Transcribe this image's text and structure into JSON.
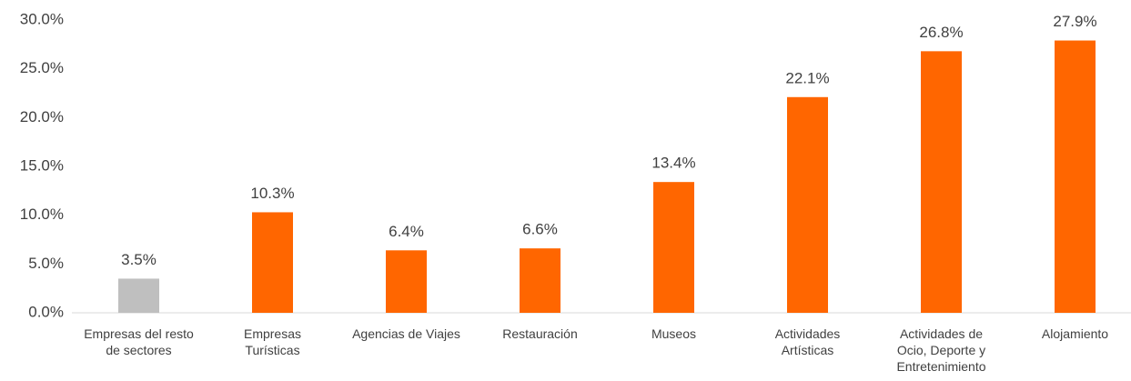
{
  "chart_data": {
    "type": "bar",
    "categories": [
      "Empresas del resto\nde sectores",
      "Empresas\nTurísticas",
      "Agencias de Viajes",
      "Restauración",
      "Museos",
      "Actividades\nArtísticas",
      "Actividades de\nOcio, Deporte y\nEntretenimiento",
      "Alojamiento"
    ],
    "values": [
      3.5,
      10.3,
      6.4,
      6.6,
      13.4,
      22.1,
      26.8,
      27.9
    ],
    "value_labels": [
      "3.5%",
      "10.3%",
      "6.4%",
      "6.6%",
      "13.4%",
      "22.1%",
      "26.8%",
      "27.9%"
    ],
    "colors": [
      "#bfbfbf",
      "#ff6600",
      "#ff6600",
      "#ff6600",
      "#ff6600",
      "#ff6600",
      "#ff6600",
      "#ff6600"
    ],
    "ylim": [
      0,
      30
    ],
    "yticks": [
      {
        "value": 0,
        "label": "0.0%"
      },
      {
        "value": 5,
        "label": "5.0%"
      },
      {
        "value": 10,
        "label": "10.0%"
      },
      {
        "value": 15,
        "label": "15.0%"
      },
      {
        "value": 20,
        "label": "20.0%"
      },
      {
        "value": 25,
        "label": "25.0%"
      },
      {
        "value": 30,
        "label": "30.0%"
      }
    ],
    "grid": false
  }
}
